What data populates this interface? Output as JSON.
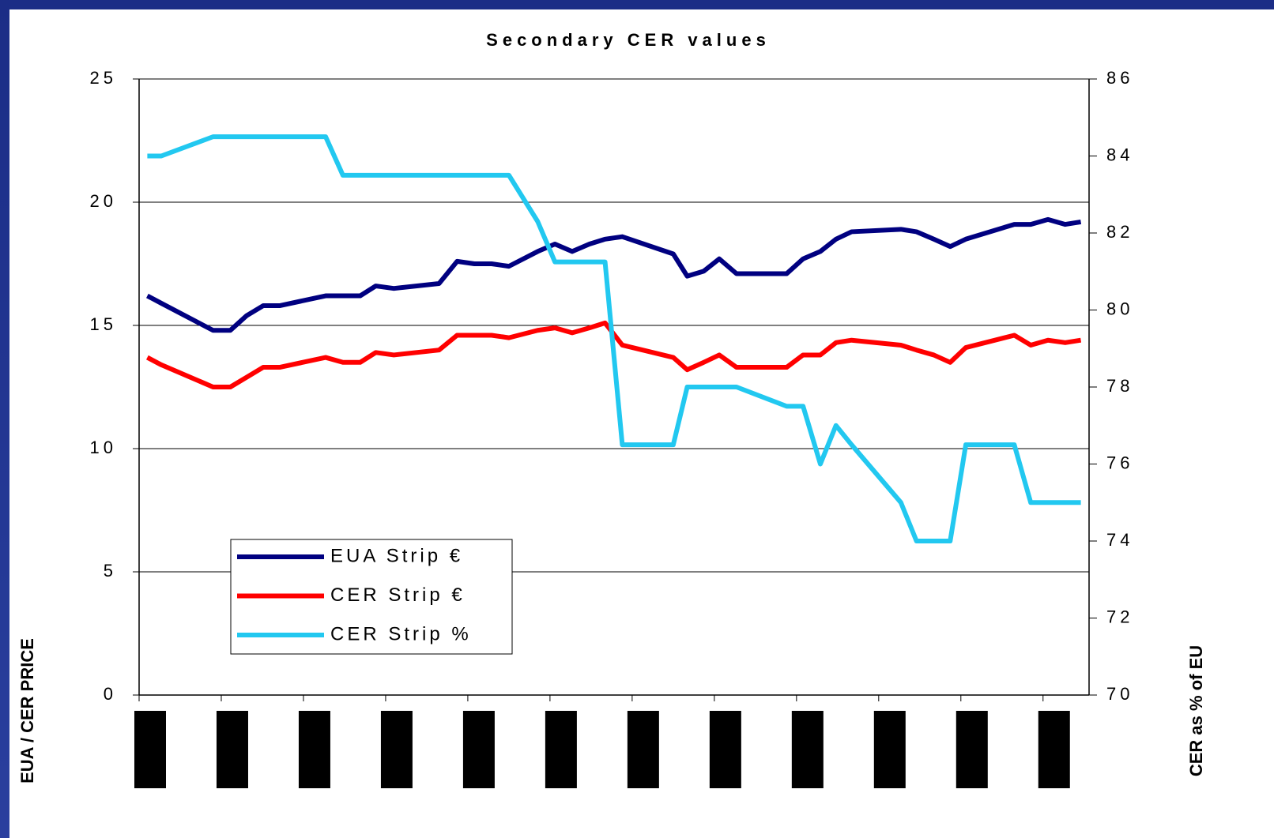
{
  "chart_data": {
    "type": "line",
    "title": "Secondary CER values",
    "y_label": "EUA / CER PRICE",
    "y2_label": "CER as % of EU",
    "x": [
      0.1,
      0.27,
      0.9,
      1.11,
      1.31,
      1.51,
      1.71,
      2.27,
      2.48,
      2.69,
      2.88,
      3.1,
      3.65,
      3.87,
      4.08,
      4.29,
      4.5,
      4.85,
      5.06,
      5.27,
      5.48,
      5.67,
      5.88,
      6.5,
      6.67,
      6.87,
      7.06,
      7.27,
      7.88,
      8.08,
      8.29,
      8.48,
      8.67,
      9.27,
      9.46,
      9.67,
      9.87,
      10.06,
      10.65,
      10.85,
      11.06,
      11.27,
      11.46
    ],
    "xlim": [
      0,
      11.56
    ],
    "xticks": [
      0,
      1,
      2,
      3,
      4,
      5,
      6,
      7,
      8,
      9,
      10,
      11
    ],
    "ylim": [
      0,
      25
    ],
    "yticks": [
      0,
      5,
      10,
      15,
      20,
      25
    ],
    "y2lim": [
      70,
      86
    ],
    "y2ticks": [
      70,
      72,
      74,
      76,
      78,
      80,
      82,
      84,
      86
    ],
    "grid": true,
    "legend": "lower left",
    "series": [
      {
        "name": "EUA  Strip €",
        "color": "#000080",
        "values": [
          16.2,
          15.9,
          14.8,
          14.8,
          15.4,
          15.8,
          15.8,
          16.2,
          16.2,
          16.2,
          16.6,
          16.5,
          16.7,
          17.6,
          17.5,
          17.5,
          17.4,
          18.0,
          18.3,
          18.0,
          18.3,
          18.5,
          18.6,
          17.9,
          17.0,
          17.2,
          17.7,
          17.1,
          17.1,
          17.7,
          18.0,
          18.5,
          18.8,
          18.9,
          18.8,
          18.5,
          18.2,
          18.5,
          19.1,
          19.1,
          19.3,
          19.1,
          19.2
        ]
      },
      {
        "name": "CER Strip €",
        "color": "#ff0000",
        "values": [
          13.7,
          13.4,
          12.5,
          12.5,
          12.9,
          13.3,
          13.3,
          13.7,
          13.5,
          13.5,
          13.9,
          13.8,
          14.0,
          14.6,
          14.6,
          14.6,
          14.5,
          14.8,
          14.9,
          14.7,
          14.9,
          15.1,
          14.2,
          13.7,
          13.2,
          13.5,
          13.8,
          13.3,
          13.3,
          13.8,
          13.8,
          14.3,
          14.4,
          14.2,
          14.0,
          13.8,
          13.5,
          14.1,
          14.6,
          14.2,
          14.4,
          14.3,
          14.4
        ]
      },
      {
        "name": "CER Strip %",
        "color": "#22c8f0",
        "axis": "y2",
        "values": [
          84,
          84,
          84.5,
          84.5,
          84.5,
          84.5,
          84.5,
          84.5,
          83.5,
          83.5,
          83.5,
          83.5,
          83.5,
          83.5,
          83.5,
          83.5,
          83.5,
          82.3,
          81.25,
          81.25,
          81.25,
          81.25,
          76.5,
          76.5,
          78,
          78,
          78,
          78,
          77.5,
          77.5,
          76,
          77,
          76.5,
          75,
          74,
          74,
          74,
          76.5,
          76.5,
          75,
          75,
          75,
          75
        ]
      }
    ]
  }
}
